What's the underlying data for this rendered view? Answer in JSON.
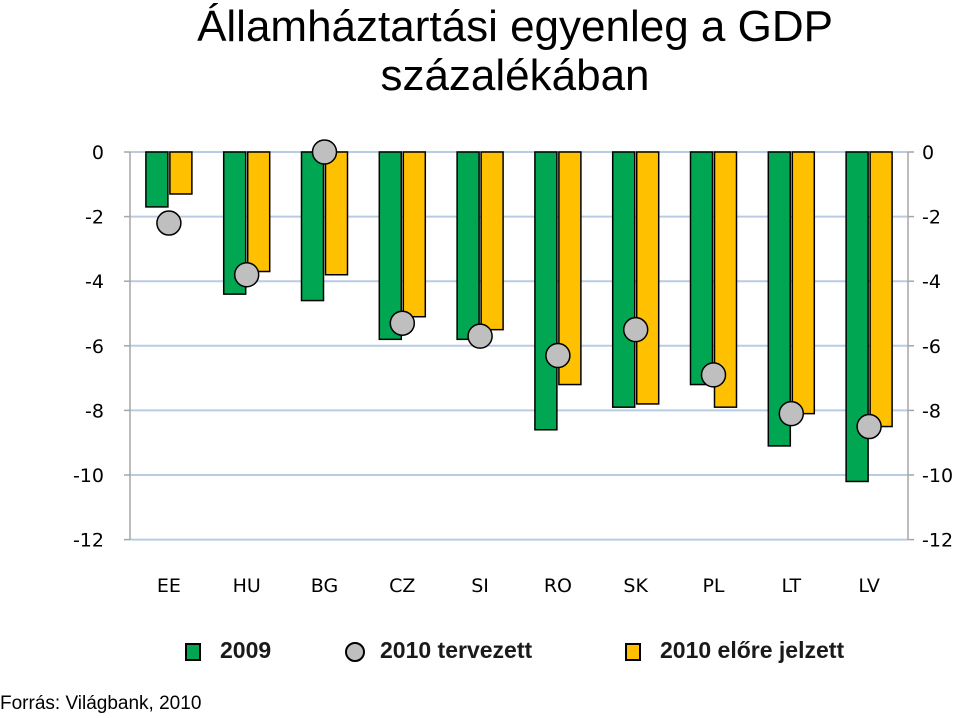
{
  "title": {
    "line1": "Államháztartási egyenleg a GDP",
    "line2": "százalékában"
  },
  "source": "Forrás: Világbank, 2010",
  "colors": {
    "series_2009": "#00a651",
    "series_2010_plan": "#bfbfbf",
    "series_2010_forecast": "#ffc000",
    "gridline": "#b8cce4",
    "axis": "#a6a6a6"
  },
  "chart_data": {
    "type": "bar",
    "categories": [
      "EE",
      "HU",
      "BG",
      "CZ",
      "SI",
      "RO",
      "SK",
      "PL",
      "LT",
      "LV"
    ],
    "series": [
      {
        "name": "2009",
        "kind": "bar",
        "values": [
          -1.7,
          -4.4,
          -4.6,
          -5.8,
          -5.8,
          -8.6,
          -7.9,
          -7.2,
          -9.1,
          -10.2
        ]
      },
      {
        "name": "2010 tervezett",
        "kind": "marker",
        "values": [
          -2.2,
          -3.8,
          0.0,
          -5.3,
          -5.7,
          -6.3,
          -5.5,
          -6.9,
          -8.1,
          -8.5
        ]
      },
      {
        "name": "2010 előre jelzett",
        "kind": "bar",
        "values": [
          -1.3,
          -3.7,
          -3.8,
          -5.1,
          -5.5,
          -7.2,
          -7.8,
          -7.9,
          -8.1,
          -8.5
        ]
      }
    ],
    "y_ticks": [
      "0",
      "-2",
      "-4",
      "-6",
      "-8",
      "-10",
      "-12"
    ],
    "ylim": [
      -12,
      0
    ],
    "secondary_y_axis": true,
    "grid": true,
    "legend_position": "bottom"
  }
}
